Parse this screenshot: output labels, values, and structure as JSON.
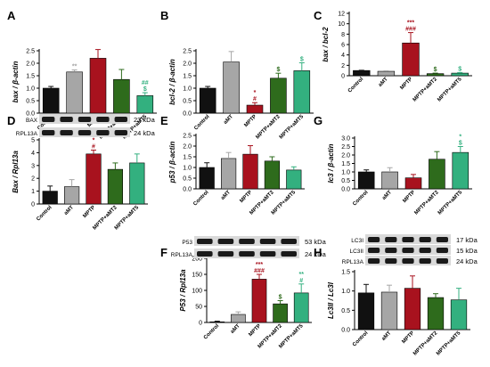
{
  "colors": {
    "control": "#111111",
    "amt": "#a6a6a6",
    "mptp": "#a8121e",
    "mptp_amt2": "#2e6b1c",
    "mptp_amt5": "#33b07f",
    "axis": "#000000"
  },
  "groups": [
    "Control",
    "aMT",
    "MPTP",
    "MPTP+aMT2",
    "MPTP+aMT5"
  ],
  "blots": {
    "D": [
      {
        "label": "BAX",
        "kda": "23 kDa"
      },
      {
        "label": "RPL13A",
        "kda": "24 kDa"
      }
    ],
    "F": [
      {
        "label": "P53",
        "kda": "53 kDa"
      },
      {
        "label": "RPL13A",
        "kda": "24 kDa"
      }
    ],
    "H": [
      {
        "label": "LC3I",
        "kda": "17 kDa"
      },
      {
        "label": "LC3II",
        "kda": "15 kDa"
      },
      {
        "label": "RPL13A",
        "kda": "24 kDa"
      }
    ]
  },
  "chart_data": [
    {
      "panel": "A",
      "type": "bar",
      "ylabel": "bax / β-actin",
      "ylim": [
        0,
        2.5
      ],
      "ticks": [
        "0.0",
        "0.5",
        "1.0",
        "1.5",
        "2.0",
        "2.5"
      ],
      "categories": [
        "Control",
        "aMT",
        "MPTP",
        "MPTP+aMT2",
        "MPTP+aMT5"
      ],
      "values": [
        1.0,
        1.65,
        2.2,
        1.35,
        0.7
      ],
      "errors": [
        0.07,
        0.08,
        0.35,
        0.4,
        0.12
      ],
      "annotations": [
        "",
        "**",
        "",
        "",
        "##\n$"
      ]
    },
    {
      "panel": "B",
      "type": "bar",
      "ylabel": "bcl-2 / β-actin",
      "ylim": [
        0,
        2.5
      ],
      "ticks": [
        "0.0",
        "0.5",
        "1.0",
        "1.5",
        "2.0",
        "2.5"
      ],
      "categories": [
        "Control",
        "aMT",
        "MPTP",
        "MPTP+aMT2",
        "MPTP+aMT5"
      ],
      "values": [
        1.0,
        2.05,
        0.32,
        1.4,
        1.7
      ],
      "errors": [
        0.07,
        0.42,
        0.1,
        0.2,
        0.32
      ],
      "annotations": [
        "",
        "",
        "*\n#",
        "$",
        "$"
      ]
    },
    {
      "panel": "C",
      "type": "bar",
      "ylabel": "bax / bcl-2",
      "ylim": [
        0,
        12
      ],
      "ticks": [
        "0",
        "2",
        "4",
        "6",
        "8",
        "10",
        "12"
      ],
      "categories": [
        "Control",
        "aMT",
        "MPTP",
        "MPTP+aMT2",
        "MPTP+aMT5"
      ],
      "values": [
        1.0,
        0.85,
        6.3,
        0.4,
        0.5
      ],
      "errors": [
        0.05,
        0.1,
        2.0,
        0.1,
        0.12
      ],
      "annotations": [
        "",
        "",
        "***\n###",
        "$",
        "$"
      ]
    },
    {
      "panel": "D",
      "type": "bar",
      "ylabel": "Bax / Rpl13a",
      "ylim": [
        0,
        5
      ],
      "ticks": [
        "0",
        "1",
        "2",
        "3",
        "4",
        "5"
      ],
      "categories": [
        "Control",
        "aMT",
        "MPTP",
        "MPTP+aMT2",
        "MPTP+aMT5"
      ],
      "values": [
        1.0,
        1.35,
        3.9,
        2.7,
        3.2
      ],
      "errors": [
        0.4,
        0.55,
        0.3,
        0.5,
        0.7
      ],
      "annotations": [
        "",
        "",
        "*\n#",
        "",
        ""
      ]
    },
    {
      "panel": "E",
      "type": "bar",
      "ylabel": "p53 / β-actin",
      "ylim": [
        0,
        2.5
      ],
      "ticks": [
        "0.0",
        "0.5",
        "1.0",
        "1.5",
        "2.0",
        "2.5"
      ],
      "categories": [
        "Control",
        "aMT",
        "MPTP",
        "MPTP+aMT2",
        "MPTP+aMT5"
      ],
      "values": [
        1.0,
        1.42,
        1.62,
        1.3,
        0.88
      ],
      "errors": [
        0.22,
        0.28,
        0.4,
        0.2,
        0.15
      ],
      "annotations": [
        "",
        "",
        "",
        "",
        ""
      ]
    },
    {
      "panel": "F",
      "type": "bar",
      "ylabel": "P53 / Rpl13a",
      "ylim": [
        0,
        200
      ],
      "ticks": [
        "0",
        "50",
        "100",
        "150",
        "200"
      ],
      "categories": [
        "Control",
        "aMT",
        "MPTP",
        "MPTP+aMT2",
        "MPTP+aMT5"
      ],
      "values": [
        2,
        25,
        135,
        58,
        92
      ],
      "errors": [
        2,
        8,
        15,
        10,
        28
      ],
      "annotations": [
        "",
        "",
        "***\n###",
        "$",
        "**\n#"
      ]
    },
    {
      "panel": "G",
      "type": "bar",
      "ylabel": "lc3 / β-actin",
      "ylim": [
        0,
        3.0
      ],
      "ticks": [
        "0.0",
        "0.5",
        "1.0",
        "1.5",
        "2.0",
        "2.5",
        "3.0"
      ],
      "categories": [
        "Control",
        "aMT",
        "MPTP",
        "MPTP+aMT2",
        "MPTP+aMT5"
      ],
      "values": [
        1.0,
        1.0,
        0.65,
        1.75,
        2.15
      ],
      "errors": [
        0.12,
        0.25,
        0.2,
        0.45,
        0.35
      ],
      "annotations": [
        "",
        "",
        "",
        "",
        "*\n$"
      ]
    },
    {
      "panel": "H",
      "type": "bar",
      "ylabel": "Lc3II / Lc3I",
      "ylim": [
        0,
        1.5
      ],
      "ticks": [
        "0.0",
        "0.5",
        "1.0",
        "1.5"
      ],
      "categories": [
        "Control",
        "aMT",
        "MPTP",
        "MPTP+aMT2",
        "MPTP+aMT5"
      ],
      "values": [
        0.95,
        0.97,
        1.07,
        0.83,
        0.77
      ],
      "errors": [
        0.22,
        0.18,
        0.32,
        0.1,
        0.3
      ],
      "annotations": [
        "",
        "",
        "",
        "",
        ""
      ]
    }
  ]
}
